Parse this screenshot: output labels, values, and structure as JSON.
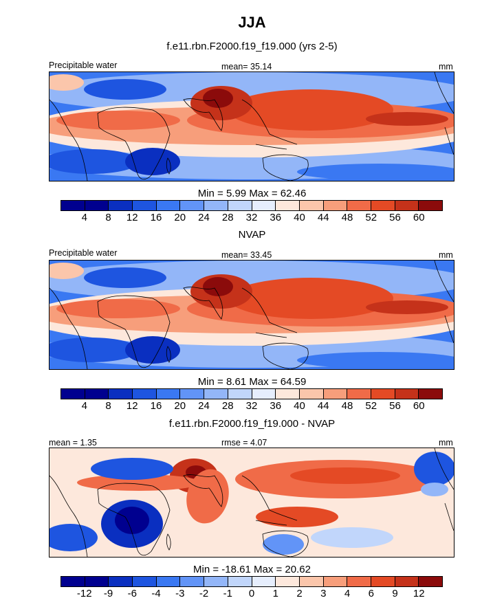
{
  "figure": {
    "season": "JJA"
  },
  "chart_data": [
    {
      "type": "heatmap",
      "title": "f.e11.rbn.F2000.f19_f19.000 (yrs 2-5)",
      "left_label": "Precipitable water",
      "mid_label": "mean=  35.14",
      "units": "mm",
      "minmax": "Min =   5.99 Max =  62.46",
      "levels": [
        "4",
        "8",
        "12",
        "16",
        "20",
        "24",
        "28",
        "32",
        "36",
        "40",
        "44",
        "48",
        "52",
        "56",
        "60"
      ],
      "colors": [
        "#00008f",
        "#0a2fc0",
        "#1e55e0",
        "#3a78f2",
        "#6294f7",
        "#93b6f8",
        "#c1d6fb",
        "#e6eefd",
        "#fde8dc",
        "#fbc6ab",
        "#f79e7b",
        "#f06b48",
        "#e44a25",
        "#c5321a",
        "#8b0b0b"
      ]
    },
    {
      "type": "heatmap",
      "title": "NVAP",
      "left_label": "Precipitable water",
      "mid_label": "mean=  33.45",
      "units": "mm",
      "minmax": "Min =   8.61 Max =  64.59",
      "levels": [
        "4",
        "8",
        "12",
        "16",
        "20",
        "24",
        "28",
        "32",
        "36",
        "40",
        "44",
        "48",
        "52",
        "56",
        "60"
      ],
      "colors": [
        "#00008f",
        "#0a2fc0",
        "#1e55e0",
        "#3a78f2",
        "#6294f7",
        "#93b6f8",
        "#c1d6fb",
        "#e6eefd",
        "#fde8dc",
        "#fbc6ab",
        "#f79e7b",
        "#f06b48",
        "#e44a25",
        "#c5321a",
        "#8b0b0b"
      ]
    },
    {
      "type": "heatmap",
      "title": "f.e11.rbn.F2000.f19_f19.000 - NVAP",
      "left_label": "mean =   1.35",
      "mid_label": "rmse =   4.07",
      "units": "mm",
      "minmax": "Min = -18.61 Max =  20.62",
      "levels": [
        "-12",
        "-9",
        "-6",
        "-4",
        "-3",
        "-2",
        "-1",
        "0",
        "1",
        "2",
        "3",
        "4",
        "6",
        "9",
        "12"
      ],
      "colors": [
        "#00008f",
        "#0a2fc0",
        "#1e55e0",
        "#3a78f2",
        "#6294f7",
        "#93b6f8",
        "#c1d6fb",
        "#e6eefd",
        "#fde8dc",
        "#fbc6ab",
        "#f79e7b",
        "#f06b48",
        "#e44a25",
        "#c5321a",
        "#8b0b0b"
      ]
    }
  ]
}
